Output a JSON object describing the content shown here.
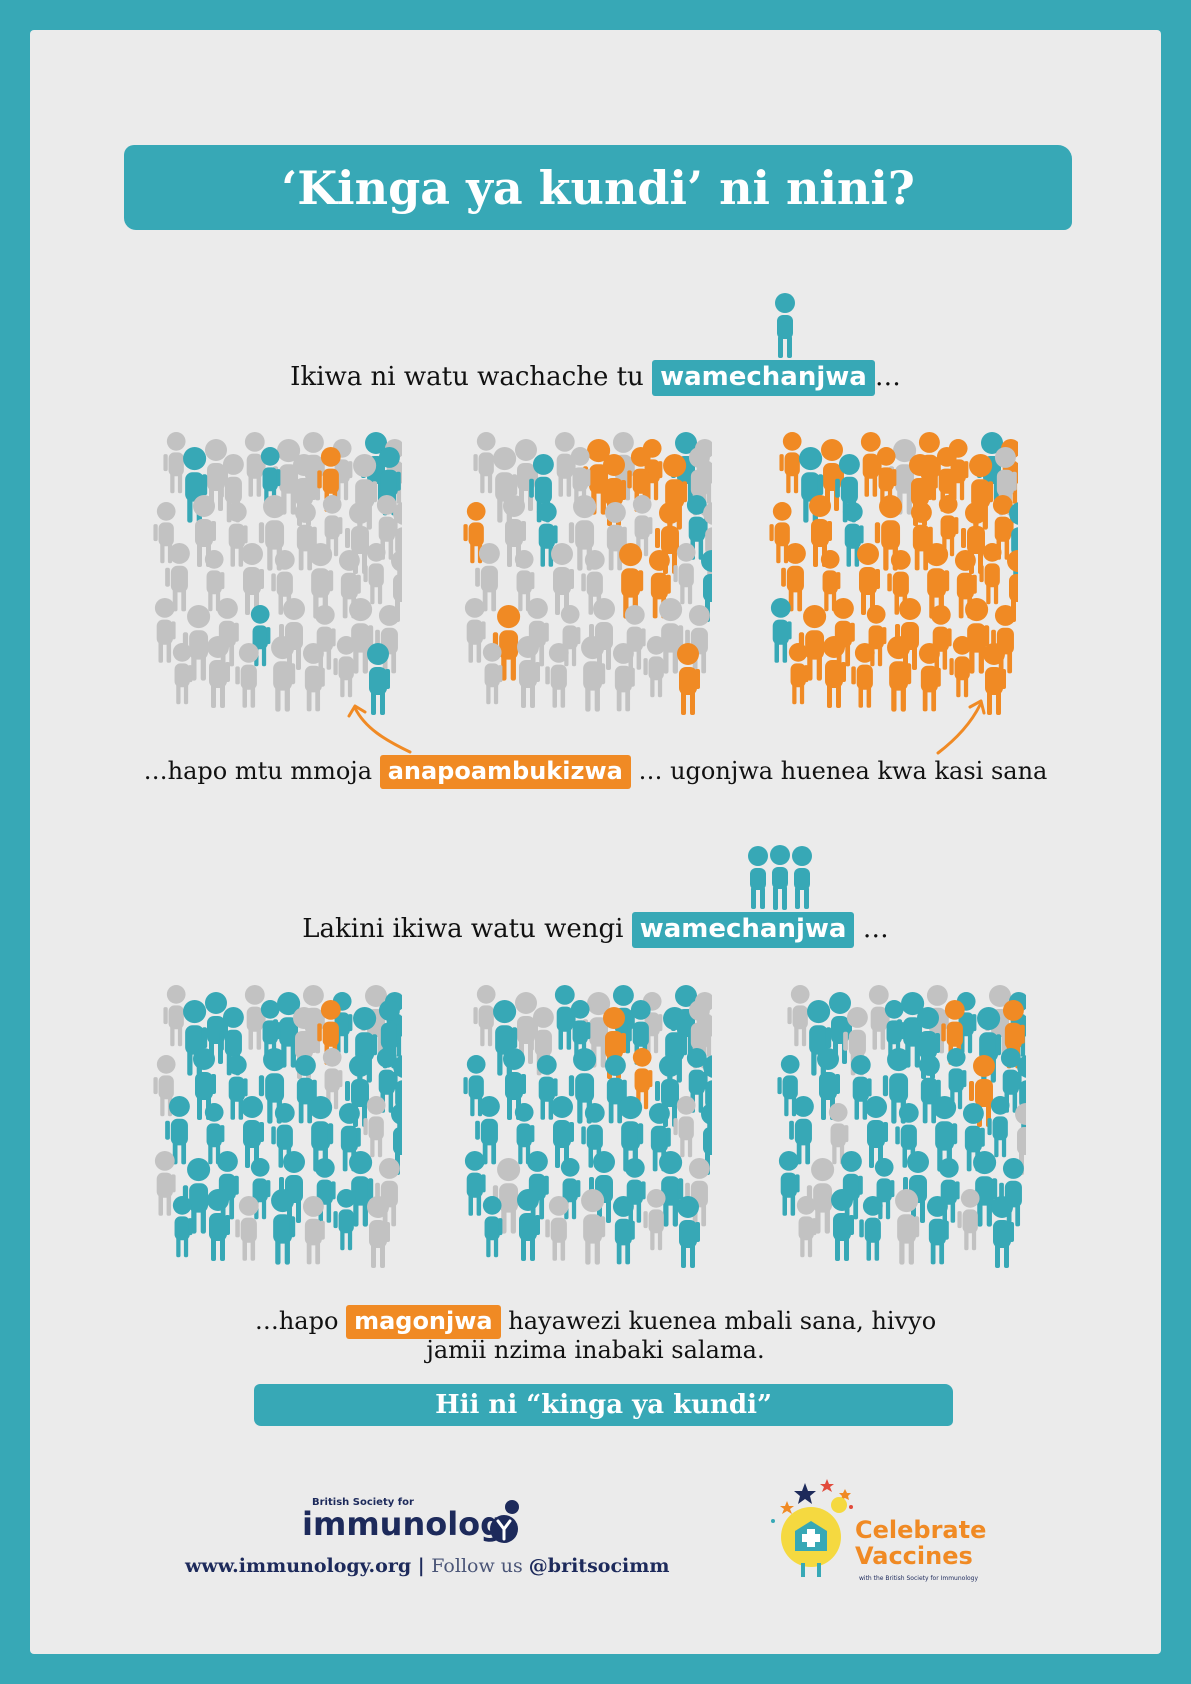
{
  "title": "‘Kinga ya kundi’ ni nini?",
  "section1": {
    "line_before": "Ikiwa ni watu wachache tu ",
    "line_highlight": "wamechanjwa",
    "line_after": "…",
    "caption_before": "…hapo mtu mmoja ",
    "caption_highlight": "anapoambukizwa",
    "caption_after": " … ugonjwa huenea kwa kasi sana"
  },
  "section2": {
    "line_before": "Lakini ikiwa watu wengi ",
    "line_highlight": "wamechanjwa",
    "line_after": " …",
    "caption_before": "…hapo ",
    "caption_highlight": "magonjwa",
    "caption_after": " hayawezi kuenea mbali sana, hivyo",
    "caption_line2": "jamii nzima inabaki salama."
  },
  "bottom_banner": "Hii ni “kinga ya kundi”",
  "footer": {
    "website": "www.immunology.org",
    "separator": " | ",
    "follow": "Follow us ",
    "handle": "@britsocimm"
  },
  "logo_bsi": {
    "small": "British Society for",
    "big": "immunolog"
  },
  "logo_cv": {
    "line1": "Celebrate",
    "line2": "Vaccines",
    "sub": "with the British Society for Immunology"
  },
  "colors": {
    "teal": "#37a8b6",
    "orange": "#f08a24",
    "grey": "#c2c2c2",
    "navy": "#1d2a5b"
  },
  "icons": [
    "person-icon",
    "arrow-icon",
    "vaccinated-person-icon",
    "celebrate-vaccines-mascot-icon"
  ]
}
